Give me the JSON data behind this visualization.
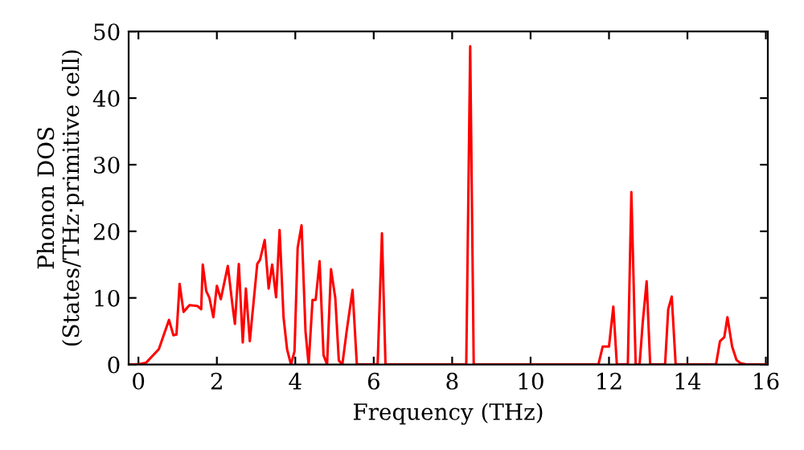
{
  "chart_data": {
    "type": "line",
    "xlabel": "Frequency (THz)",
    "ylabel": "Phonon DOS\n(States/THz·primitive cell)",
    "x": [
      -0.2,
      0,
      0.2,
      0.52,
      0.78,
      0.89,
      0.97,
      1.05,
      1.15,
      1.3,
      1.5,
      1.6,
      1.64,
      1.73,
      1.81,
      1.91,
      2.0,
      2.1,
      2.28,
      2.4,
      2.46,
      2.56,
      2.66,
      2.74,
      2.84,
      3.03,
      3.1,
      3.22,
      3.32,
      3.41,
      3.51,
      3.6,
      3.7,
      3.79,
      3.89,
      3.98,
      4.06,
      4.16,
      4.26,
      4.34,
      4.44,
      4.52,
      4.62,
      4.72,
      4.81,
      4.91,
      5.02,
      5.11,
      5.2,
      5.31,
      5.46,
      5.57,
      6.1,
      6.21,
      6.3,
      8.36,
      8.46,
      8.55,
      11.73,
      11.84,
      12.0,
      12.11,
      12.2,
      12.48,
      12.57,
      12.68,
      12.78,
      12.86,
      12.96,
      13.05,
      13.43,
      13.51,
      13.6,
      13.7,
      14.73,
      14.83,
      14.94,
      15.02,
      15.14,
      15.25,
      15.35,
      15.5,
      16.0
    ],
    "series": [
      {
        "color": "#ff0000",
        "values": [
          0,
          0,
          0.3,
          2.3,
          6.7,
          4.4,
          4.5,
          12.1,
          7.9,
          8.9,
          8.8,
          8.3,
          15.0,
          11,
          10,
          7.1,
          11.8,
          9.8,
          14.8,
          8.8,
          6.1,
          15.1,
          3.3,
          11.4,
          3.5,
          15.1,
          15.7,
          18.7,
          11.4,
          15,
          10.1,
          20.2,
          7.1,
          2.3,
          0,
          2,
          17.5,
          20.9,
          5,
          0,
          9.7,
          9.7,
          15.5,
          1.4,
          0,
          14.3,
          10,
          0.6,
          0,
          5,
          11.2,
          0,
          0,
          19.7,
          0,
          0,
          47.8,
          0,
          0,
          2.7,
          2.7,
          8.7,
          0,
          0,
          25.9,
          0,
          0,
          6.3,
          12.5,
          0,
          0,
          8.3,
          10.2,
          0,
          0,
          3.5,
          4.1,
          7.1,
          2.7,
          0.7,
          0.2,
          0,
          0
        ]
      }
    ],
    "xlim": [
      -0.25,
      16.05
    ],
    "ylim": [
      0,
      50
    ],
    "xticks": [
      0,
      2,
      4,
      6,
      8,
      10,
      12,
      14,
      16
    ],
    "yticks": [
      0,
      10,
      20,
      30,
      40,
      50
    ],
    "grid": false,
    "legend": false,
    "line_style": "solid",
    "marker": "none"
  }
}
